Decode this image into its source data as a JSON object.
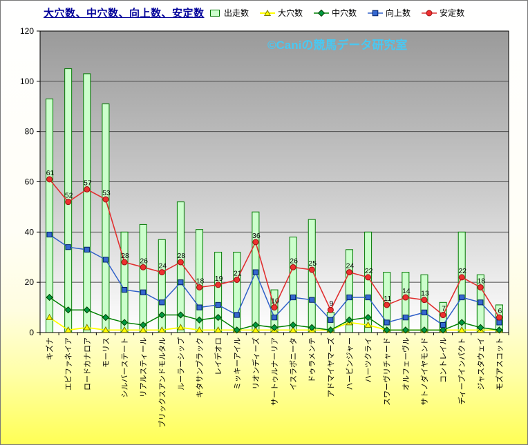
{
  "page": {
    "title": "大穴数、中穴数、向上数、安定数",
    "watermark": "©Caniの競馬データ研究室"
  },
  "chart_data": {
    "type": "bar+line",
    "title": "大穴数、中穴数、向上数、安定数",
    "xlabel": "",
    "ylabel": "",
    "ylim": [
      0,
      120
    ],
    "ytick_step": 20,
    "grid": "horizontal",
    "legend_position": "top",
    "categories": [
      "キズナ",
      "エピファネイア",
      "ロードカナロア",
      "モーリス",
      "シルバーステート",
      "リアルスティール",
      "ブリックスアンドモルタル",
      "ルーラーシップ",
      "キタサンブラック",
      "レイデオロ",
      "ミッキーアイル",
      "リオンディーズ",
      "サートゥルナーリア",
      "イスラボニータ",
      "ドゥラメンテ",
      "アドマイヤマーズ",
      "ハービンジャー",
      "ハーツクライ",
      "スワーヴリチャード",
      "オルフェーヴル",
      "サトノダイヤモンド",
      "コントレイル",
      "ディープインパクト",
      "ジャスタウェイ",
      "モズアスコット"
    ],
    "series": [
      {
        "key": "shussou",
        "name": "出走数",
        "type": "bar",
        "fill": "#ccffcc",
        "stroke": "#007700",
        "values": [
          93,
          105,
          103,
          91,
          40,
          43,
          37,
          52,
          41,
          32,
          32,
          48,
          17,
          38,
          45,
          8,
          33,
          40,
          24,
          24,
          23,
          12,
          40,
          23,
          11
        ]
      },
      {
        "key": "ooana",
        "name": "大穴数",
        "type": "line",
        "marker": "triangle",
        "color": "#ffff00",
        "marker_fill": "#ffff00",
        "marker_edge": "#7a7a00",
        "width": 1.8,
        "values": [
          6,
          1,
          2,
          1,
          1,
          1,
          1,
          2,
          1,
          1,
          1,
          1,
          1,
          1,
          1,
          1,
          4,
          3,
          1,
          1,
          1,
          1,
          1,
          1,
          1
        ]
      },
      {
        "key": "chuuana",
        "name": "中穴数",
        "type": "line",
        "marker": "diamond",
        "color": "#008000",
        "marker_fill": "#009940",
        "marker_edge": "#004000",
        "width": 1.5,
        "values": [
          14,
          9,
          9,
          6,
          4,
          3,
          7,
          7,
          5,
          6,
          1,
          3,
          2,
          3,
          2,
          1,
          5,
          6,
          1,
          1,
          1,
          1,
          4,
          2,
          1
        ]
      },
      {
        "key": "koujou",
        "name": "向上数",
        "type": "line",
        "marker": "square",
        "color": "#3060c8",
        "marker_fill": "#3568d0",
        "marker_edge": "#001f66",
        "width": 1.5,
        "values": [
          39,
          34,
          33,
          29,
          17,
          16,
          12,
          20,
          10,
          11,
          7,
          24,
          6,
          14,
          13,
          5,
          14,
          14,
          4,
          6,
          8,
          3,
          14,
          12,
          4
        ]
      },
      {
        "key": "antei",
        "name": "安定数",
        "type": "line",
        "marker": "circle",
        "color": "#e03030",
        "marker_fill": "#ee3030",
        "marker_edge": "#991111",
        "width": 1.6,
        "data_labels": true,
        "values": [
          61,
          52,
          57,
          53,
          28,
          26,
          24,
          28,
          18,
          19,
          21,
          36,
          10,
          26,
          25,
          9,
          24,
          22,
          11,
          14,
          13,
          7,
          22,
          18,
          6
        ]
      }
    ]
  }
}
